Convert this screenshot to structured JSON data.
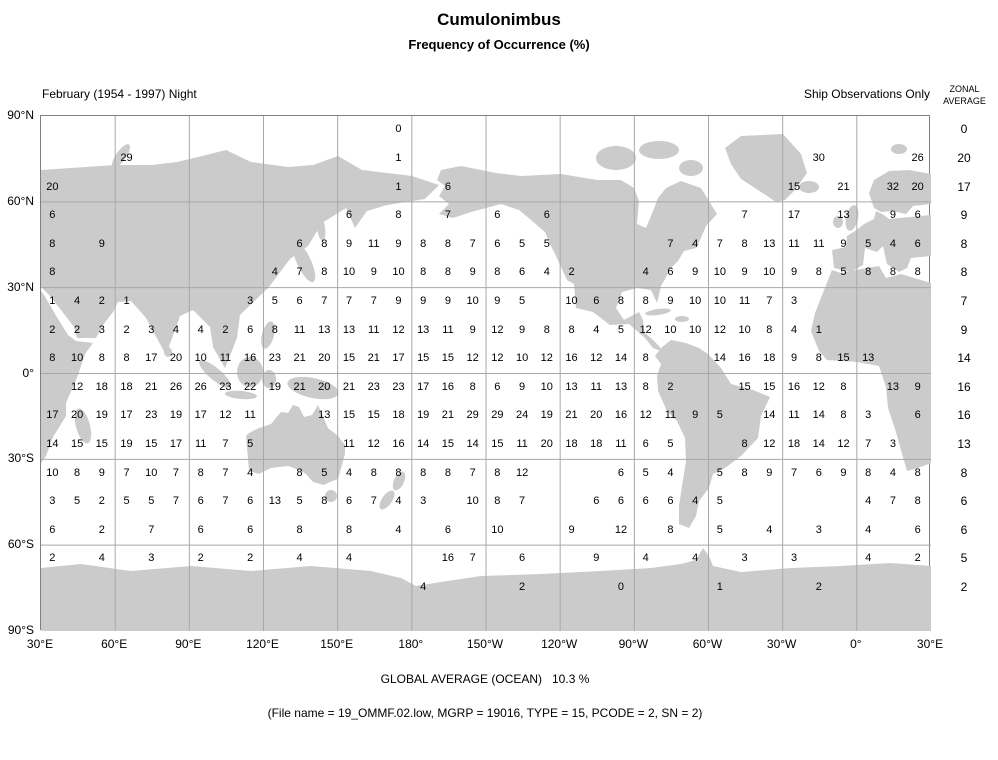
{
  "title": "Cumulonimbus",
  "subtitle": "Frequency of Occurrence (%)",
  "period_label": "February (1954 - 1997) Night",
  "source_label": "Ship Observations Only",
  "zonal_header": {
    "line1": "ZONAL",
    "line2": "AVERAGE"
  },
  "footer": {
    "global_average": "GLOBAL AVERAGE (OCEAN)   10.3 %",
    "file_info": "(File name = 19_OMMF.02.low, MGRP = 19016, TYPE = 15, PCODE = 2, SN = 2)"
  },
  "colors": {
    "land": "#cbcbcb",
    "grid": "#a8a8a8",
    "border": "#808080",
    "text": "#000000"
  },
  "chart_data": {
    "type": "heatmap",
    "title": "Cumulonimbus Frequency of Occurrence (%)",
    "subtitle": "February (1954 - 1997) Night, Ship Observations Only",
    "units": "%",
    "projection": "equirectangular world map, pacific-centered, longitude 30E eastward to 30E",
    "cell_size_deg": 10,
    "lon_start_deg_east": 30,
    "row_lat_centers": [
      85,
      75,
      65,
      55,
      45,
      35,
      25,
      15,
      5,
      -5,
      -15,
      -25,
      -35,
      -45,
      -55,
      -65,
      -75,
      -85
    ],
    "lat_axis_labels": [
      "90°N",
      "60°N",
      "30°N",
      "0°",
      "30°S",
      "60°S",
      "90°S"
    ],
    "lon_axis_labels": [
      "30°E",
      "60°E",
      "90°E",
      "120°E",
      "150°E",
      "180°",
      "150°W",
      "120°W",
      "90°W",
      "60°W",
      "30°W",
      "0°",
      "30°E"
    ],
    "zonal_average_label": "ZONAL AVERAGE",
    "zonal_averages": [
      0,
      20,
      17,
      9,
      8,
      8,
      7,
      9,
      14,
      16,
      16,
      13,
      8,
      6,
      6,
      5,
      2,
      null
    ],
    "global_average_ocean_pct": 10.3,
    "grid": [
      [
        null,
        null,
        null,
        null,
        null,
        null,
        null,
        null,
        null,
        null,
        null,
        null,
        null,
        null,
        0,
        null,
        null,
        null,
        null,
        null,
        null,
        null,
        null,
        null,
        null,
        null,
        null,
        null,
        null,
        null,
        null,
        null,
        null,
        null,
        null,
        null
      ],
      [
        null,
        null,
        null,
        29,
        null,
        null,
        null,
        null,
        null,
        null,
        null,
        null,
        null,
        null,
        1,
        null,
        null,
        null,
        null,
        null,
        null,
        null,
        null,
        null,
        null,
        null,
        null,
        null,
        null,
        null,
        null,
        30,
        null,
        null,
        null,
        26
      ],
      [
        20,
        null,
        null,
        null,
        null,
        null,
        null,
        null,
        null,
        null,
        null,
        null,
        null,
        null,
        1,
        null,
        6,
        null,
        null,
        null,
        null,
        null,
        null,
        null,
        null,
        null,
        null,
        null,
        null,
        null,
        15,
        null,
        21,
        null,
        32,
        20
      ],
      [
        6,
        null,
        null,
        null,
        null,
        null,
        null,
        null,
        null,
        null,
        null,
        null,
        6,
        null,
        8,
        null,
        7,
        null,
        6,
        null,
        6,
        null,
        null,
        null,
        null,
        null,
        null,
        null,
        7,
        null,
        17,
        null,
        13,
        null,
        9,
        6
      ],
      [
        8,
        null,
        9,
        null,
        null,
        null,
        null,
        null,
        null,
        null,
        6,
        8,
        9,
        11,
        9,
        8,
        8,
        7,
        6,
        5,
        5,
        null,
        null,
        null,
        null,
        7,
        4,
        7,
        8,
        13,
        11,
        11,
        9,
        5,
        4,
        6
      ],
      [
        8,
        null,
        null,
        null,
        null,
        null,
        null,
        null,
        null,
        4,
        7,
        8,
        10,
        9,
        10,
        8,
        8,
        9,
        8,
        6,
        4,
        2,
        null,
        null,
        4,
        6,
        9,
        10,
        9,
        10,
        9,
        8,
        5,
        8,
        8,
        8
      ],
      [
        1,
        4,
        2,
        1,
        null,
        null,
        null,
        null,
        3,
        5,
        6,
        7,
        7,
        7,
        9,
        9,
        9,
        10,
        9,
        5,
        null,
        10,
        6,
        8,
        8,
        9,
        10,
        10,
        11,
        7,
        3,
        null,
        null,
        null,
        null,
        null
      ],
      [
        2,
        2,
        3,
        2,
        3,
        4,
        4,
        2,
        6,
        8,
        11,
        13,
        13,
        11,
        12,
        13,
        11,
        9,
        12,
        9,
        8,
        8,
        4,
        5,
        12,
        10,
        10,
        12,
        10,
        8,
        4,
        1,
        null,
        null,
        null,
        null
      ],
      [
        8,
        10,
        8,
        8,
        17,
        20,
        10,
        11,
        16,
        23,
        21,
        20,
        15,
        21,
        17,
        15,
        15,
        12,
        12,
        10,
        12,
        16,
        12,
        14,
        8,
        null,
        null,
        14,
        16,
        18,
        9,
        8,
        15,
        13,
        null,
        null
      ],
      [
        null,
        12,
        18,
        18,
        21,
        26,
        26,
        23,
        22,
        19,
        21,
        20,
        21,
        23,
        23,
        17,
        16,
        8,
        6,
        9,
        10,
        13,
        11,
        13,
        8,
        2,
        null,
        null,
        15,
        15,
        16,
        12,
        8,
        null,
        13,
        9
      ],
      [
        17,
        20,
        19,
        17,
        23,
        19,
        17,
        12,
        11,
        null,
        null,
        13,
        15,
        15,
        18,
        19,
        21,
        29,
        29,
        24,
        19,
        21,
        20,
        16,
        12,
        11,
        9,
        5,
        null,
        14,
        11,
        14,
        8,
        3,
        null,
        6
      ],
      [
        14,
        15,
        15,
        19,
        15,
        17,
        11,
        7,
        5,
        null,
        null,
        null,
        11,
        12,
        16,
        14,
        15,
        14,
        15,
        11,
        20,
        18,
        18,
        11,
        6,
        5,
        null,
        null,
        8,
        12,
        18,
        14,
        12,
        7,
        3,
        null
      ],
      [
        10,
        8,
        9,
        7,
        10,
        7,
        8,
        7,
        4,
        null,
        8,
        5,
        4,
        8,
        8,
        8,
        8,
        7,
        8,
        12,
        null,
        null,
        null,
        6,
        5,
        4,
        null,
        5,
        8,
        9,
        7,
        6,
        9,
        8,
        4,
        8
      ],
      [
        3,
        5,
        2,
        5,
        5,
        7,
        6,
        7,
        6,
        13,
        5,
        8,
        6,
        7,
        4,
        3,
        null,
        10,
        8,
        7,
        null,
        null,
        6,
        6,
        6,
        6,
        4,
        5,
        null,
        null,
        null,
        null,
        null,
        4,
        7,
        8
      ],
      [
        6,
        null,
        2,
        null,
        7,
        null,
        6,
        null,
        6,
        null,
        8,
        null,
        8,
        null,
        4,
        null,
        6,
        null,
        10,
        null,
        null,
        9,
        null,
        12,
        null,
        8,
        null,
        5,
        null,
        4,
        null,
        3,
        null,
        4,
        null,
        6
      ],
      [
        2,
        null,
        4,
        null,
        3,
        null,
        2,
        null,
        2,
        null,
        4,
        null,
        4,
        null,
        null,
        null,
        16,
        7,
        null,
        6,
        null,
        null,
        9,
        null,
        4,
        null,
        4,
        null,
        3,
        null,
        3,
        null,
        null,
        4,
        null,
        2
      ],
      [
        null,
        null,
        null,
        null,
        null,
        null,
        null,
        null,
        null,
        null,
        null,
        null,
        null,
        null,
        null,
        4,
        null,
        null,
        null,
        2,
        null,
        null,
        null,
        0,
        null,
        null,
        null,
        1,
        null,
        null,
        null,
        2,
        null,
        null,
        null,
        null
      ],
      [
        null,
        null,
        null,
        null,
        null,
        null,
        null,
        null,
        null,
        null,
        null,
        null,
        null,
        null,
        null,
        null,
        null,
        null,
        null,
        null,
        null,
        null,
        null,
        null,
        null,
        null,
        null,
        null,
        null,
        null,
        null,
        null,
        null,
        null,
        null,
        null
      ]
    ]
  }
}
